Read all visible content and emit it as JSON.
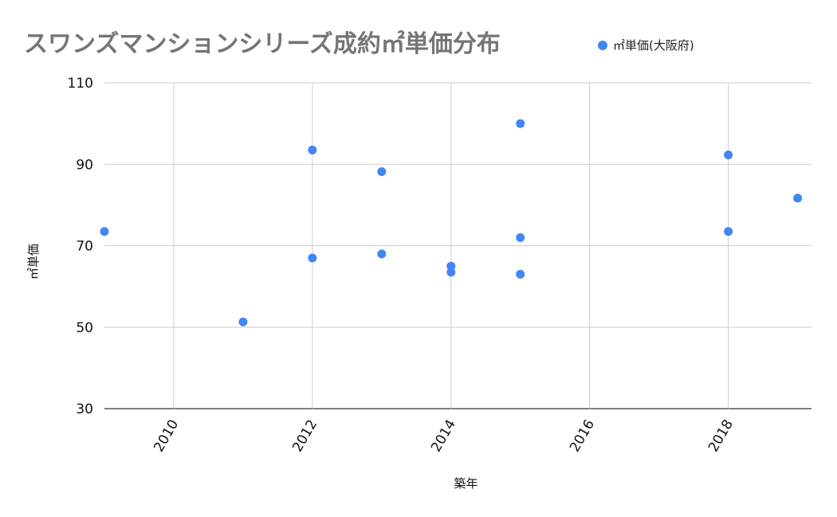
{
  "chart_data": {
    "type": "scatter",
    "title": "スワンズマンションシリーズ成約㎡単価分布",
    "xlabel": "築年",
    "ylabel": "㎡単価",
    "xlim": [
      2009,
      2019.2
    ],
    "ylim": [
      30,
      110
    ],
    "xticks": [
      2010,
      2012,
      2014,
      2016,
      2018
    ],
    "yticks": [
      30,
      50,
      70,
      90,
      110
    ],
    "grid": true,
    "legend_position": "top-right",
    "series": [
      {
        "name": "㎡単価(大阪府)",
        "color": "#4285f4",
        "points": [
          {
            "x": 2009,
            "y": 73.5
          },
          {
            "x": 2011,
            "y": 51.3
          },
          {
            "x": 2012,
            "y": 93.5
          },
          {
            "x": 2012,
            "y": 67.0
          },
          {
            "x": 2013,
            "y": 88.2
          },
          {
            "x": 2013,
            "y": 68.0
          },
          {
            "x": 2014,
            "y": 65.0
          },
          {
            "x": 2014,
            "y": 63.5
          },
          {
            "x": 2015,
            "y": 100.0
          },
          {
            "x": 2015,
            "y": 72.0
          },
          {
            "x": 2015,
            "y": 63.0
          },
          {
            "x": 2018,
            "y": 92.3
          },
          {
            "x": 2018,
            "y": 73.5
          },
          {
            "x": 2019,
            "y": 81.7
          }
        ]
      }
    ]
  }
}
